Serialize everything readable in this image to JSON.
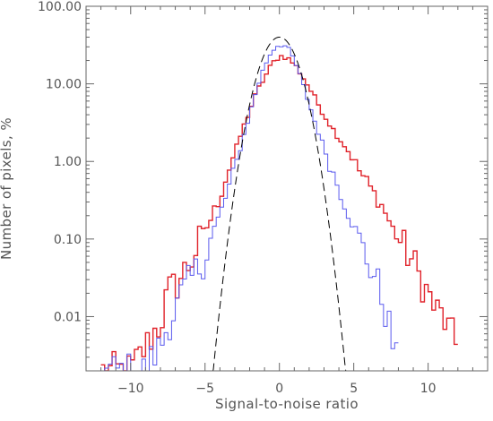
{
  "chart_data": {
    "type": "line",
    "title": "",
    "xlabel": "Signal-to-noise ratio",
    "ylabel": "Number of pixels, %",
    "xlim": [
      -13,
      14
    ],
    "ylim": [
      0.002,
      100
    ],
    "yscale": "log",
    "grid": false,
    "legend": "none",
    "x_ticks": [
      -10,
      -5,
      0,
      5,
      10
    ],
    "x_tick_labels": [
      "−10",
      "−5",
      "0",
      "5",
      "10"
    ],
    "y_ticks": [
      0.01,
      0.1,
      1,
      10,
      100
    ],
    "y_tick_labels": [
      "0.01",
      "0.10",
      "1.00",
      "10.00",
      "100.00"
    ],
    "series": [
      {
        "color": "#e0222a",
        "style": "step",
        "sigma": 2.1,
        "peak": 23,
        "x": [
          -12.0,
          -11.0,
          -10.0,
          -9.0,
          -8.5,
          -8.0,
          -7.5,
          -7.0,
          -6.5,
          -6.0,
          -5.5,
          -5.0,
          -4.5,
          -4.0,
          -3.5,
          -3.0,
          -2.5,
          -2.0,
          -1.5,
          -1.0,
          -0.5,
          0.0,
          0.5,
          1.0,
          1.5,
          2.0,
          2.5,
          3.0,
          3.5,
          4.0,
          4.5,
          5.0,
          5.5,
          6.0,
          6.5,
          7.0,
          7.5,
          8.0,
          8.5,
          9.0,
          9.5,
          10.0,
          10.5,
          11.0,
          11.5,
          12.0
        ],
        "y": [
          0.002,
          0.002,
          0.002,
          0.004,
          0.006,
          0.008,
          0.02,
          0.025,
          0.035,
          0.05,
          0.08,
          0.13,
          0.2,
          0.35,
          0.7,
          1.3,
          2.5,
          4.5,
          8,
          12,
          18,
          23,
          22,
          18,
          13,
          9,
          6,
          4,
          2.8,
          2.0,
          1.5,
          1.0,
          0.7,
          0.5,
          0.35,
          0.25,
          0.15,
          0.1,
          0.07,
          0.05,
          0.03,
          0.02,
          0.012,
          0.01,
          0.006,
          0.004
        ]
      },
      {
        "color": "#5a5aee",
        "style": "step",
        "sigma": 1.5,
        "peak": 33,
        "x": [
          -12.0,
          -11.0,
          -10.0,
          -9.0,
          -8.5,
          -8.0,
          -7.5,
          -7.0,
          -6.5,
          -6.0,
          -5.5,
          -5.0,
          -4.5,
          -4.0,
          -3.5,
          -3.0,
          -2.5,
          -2.0,
          -1.5,
          -1.0,
          -0.5,
          0.0,
          0.5,
          1.0,
          1.5,
          2.0,
          2.5,
          3.0,
          3.5,
          4.0,
          4.5,
          5.0,
          5.5,
          6.0,
          6.5,
          7.0,
          7.5,
          8.0
        ],
        "y": [
          0.002,
          0.002,
          0.002,
          0.002,
          0.003,
          0.004,
          0.008,
          0.012,
          0.02,
          0.028,
          0.04,
          0.06,
          0.12,
          0.2,
          0.4,
          0.8,
          1.8,
          4,
          9,
          17,
          27,
          33,
          30,
          20,
          11,
          5.5,
          2.8,
          1.5,
          0.8,
          0.45,
          0.25,
          0.15,
          0.08,
          0.05,
          0.03,
          0.015,
          0.006,
          0.002
        ]
      },
      {
        "color": "#000000",
        "style": "dashed",
        "mean": 0,
        "sigma": 1.0,
        "peak": 40,
        "x_range": [
          -4.5,
          4.5
        ]
      }
    ]
  }
}
